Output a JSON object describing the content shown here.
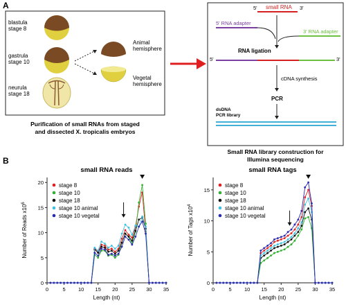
{
  "panel_a": {
    "label": "A",
    "embryos": [
      {
        "name": "blastula",
        "stage": "stage 8"
      },
      {
        "name": "gastrula",
        "stage": "stage 10"
      },
      {
        "name": "neurula",
        "stage": "stage 18"
      }
    ],
    "hemispheres": {
      "animal_1": "Animal",
      "animal_2": "hemisphere",
      "vegetal_1": "Vegetal",
      "vegetal_2": "hemisphere"
    },
    "caption_left": [
      "Purification of small RNAs from staged",
      "and dissected X. tropicalis embryos"
    ],
    "flow": {
      "small_rna": "small RNA",
      "five_prime": "5'",
      "three_prime": "3'",
      "adapter_5": "5' RNA adapter",
      "adapter_3": "3' RNA adapter",
      "ligation": "RNA ligation",
      "cdna": "cDNA synthesis",
      "pcr": "PCR",
      "dsdna": "dsDNA",
      "pcr_library": "PCR library"
    },
    "caption_right": [
      "Small RNA library construction for",
      "Illumina sequencing"
    ],
    "colors": {
      "animal": "#7a4a25",
      "vegetal": "#e0d040",
      "small_rna": "#d42020",
      "adapter_5": "#7a3fa0",
      "adapter_3": "#6cc040",
      "library": "#40b0d8",
      "red_arrow": "#e02020"
    }
  },
  "panel_b": {
    "label": "B"
  },
  "chart_data": [
    {
      "type": "line",
      "title": "small RNA reads",
      "xlabel": "Length (nt)",
      "ylabel_main": "Number of Reads x10",
      "ylabel_exp": "6",
      "xlim": [
        0,
        35
      ],
      "ylim": [
        0,
        21
      ],
      "xticks": [
        0,
        5,
        10,
        15,
        20,
        25,
        30,
        35
      ],
      "yticks": [
        0,
        5,
        10,
        15,
        20
      ],
      "x": [
        1,
        2,
        3,
        4,
        5,
        6,
        7,
        8,
        9,
        10,
        11,
        12,
        13,
        14,
        15,
        16,
        17,
        18,
        19,
        20,
        21,
        22,
        23,
        24,
        25,
        26,
        27,
        28,
        29,
        30,
        31,
        32,
        33,
        34,
        35
      ],
      "series": [
        {
          "name": "stage 8",
          "color": "#e02020",
          "values": [
            0,
            0,
            0,
            0,
            0,
            0,
            0,
            0,
            0,
            0,
            0,
            0,
            0,
            6.8,
            6.2,
            7.6,
            7.4,
            6.6,
            6.8,
            6.2,
            6.8,
            8.8,
            10.5,
            9.6,
            9.0,
            11.2,
            15.2,
            18.0,
            10.2,
            0,
            0,
            0,
            0,
            0,
            0
          ]
        },
        {
          "name": "stage 10",
          "color": "#30b030",
          "values": [
            0,
            0,
            0,
            0,
            0,
            0,
            0,
            0,
            0,
            0,
            0,
            0,
            0,
            5.6,
            5.0,
            6.4,
            6.4,
            5.4,
            5.6,
            5.0,
            5.6,
            8.0,
            9.8,
            9.2,
            7.8,
            10.2,
            16.0,
            19.5,
            11.8,
            0,
            0,
            0,
            0,
            0,
            0
          ]
        },
        {
          "name": "stage 18",
          "color": "#111111",
          "values": [
            0,
            0,
            0,
            0,
            0,
            0,
            0,
            0,
            0,
            0,
            0,
            0,
            0,
            6.6,
            6.0,
            7.2,
            7.0,
            6.2,
            6.4,
            5.8,
            6.4,
            8.0,
            9.8,
            9.2,
            8.4,
            10.4,
            12.6,
            13.0,
            10.8,
            0,
            0,
            0,
            0,
            0,
            0
          ]
        },
        {
          "name": "stage 10 animal",
          "color": "#40c0e0",
          "values": [
            0,
            0,
            0,
            0,
            0,
            0,
            0,
            0,
            0,
            0,
            0,
            0,
            0,
            7.0,
            6.4,
            8.2,
            7.8,
            7.0,
            7.4,
            6.8,
            7.4,
            9.8,
            11.6,
            11.0,
            9.6,
            11.4,
            11.2,
            13.2,
            11.2,
            0,
            0,
            0,
            0,
            0,
            0
          ]
        },
        {
          "name": "stage 10 vegetal",
          "color": "#2a2ab0",
          "values": [
            0,
            0,
            0,
            0,
            0,
            0,
            0,
            0,
            0,
            0,
            0,
            0,
            0,
            6.0,
            5.4,
            6.8,
            6.6,
            5.6,
            5.8,
            5.4,
            5.8,
            7.2,
            9.2,
            8.6,
            7.6,
            9.2,
            11.2,
            12.2,
            9.8,
            0,
            0,
            0,
            0,
            0,
            0
          ]
        }
      ],
      "annotations": {
        "arrow_down_x": 22.5,
        "arrow_down_y": 13.0,
        "triangle_x": 28
      }
    },
    {
      "type": "line",
      "title": "small RNA tags",
      "xlabel": "Length (nt)",
      "ylabel_main": "Number of Tags x10",
      "ylabel_exp": "4",
      "xlim": [
        0,
        35
      ],
      "ylim": [
        0,
        17
      ],
      "xticks": [
        0,
        5,
        10,
        15,
        20,
        25,
        30,
        35
      ],
      "yticks": [
        0,
        5,
        10,
        15
      ],
      "x": [
        1,
        2,
        3,
        4,
        5,
        6,
        7,
        8,
        9,
        10,
        11,
        12,
        13,
        14,
        15,
        16,
        17,
        18,
        19,
        20,
        21,
        22,
        23,
        24,
        25,
        26,
        27,
        28,
        29,
        30,
        31,
        32,
        33,
        34,
        35
      ],
      "series": [
        {
          "name": "stage 8",
          "color": "#e02020",
          "values": [
            0,
            0,
            0,
            0,
            0,
            0,
            0,
            0,
            0,
            0,
            0,
            0,
            0,
            4.8,
            5.2,
            5.6,
            6.0,
            6.6,
            6.8,
            7.0,
            7.2,
            7.6,
            8.0,
            8.6,
            9.4,
            10.6,
            13.8,
            15.0,
            12.4,
            0,
            0,
            0,
            0,
            0,
            0
          ]
        },
        {
          "name": "stage 10",
          "color": "#30b030",
          "values": [
            0,
            0,
            0,
            0,
            0,
            0,
            0,
            0,
            0,
            0,
            0,
            0,
            0,
            3.2,
            3.6,
            4.0,
            4.4,
            4.8,
            5.0,
            5.2,
            5.4,
            5.8,
            6.2,
            6.8,
            7.6,
            8.6,
            10.4,
            10.6,
            8.8,
            0,
            0,
            0,
            0,
            0,
            0
          ]
        },
        {
          "name": "stage 18",
          "color": "#111111",
          "values": [
            0,
            0,
            0,
            0,
            0,
            0,
            0,
            0,
            0,
            0,
            0,
            0,
            0,
            4.0,
            4.4,
            4.8,
            5.2,
            5.6,
            5.8,
            6.0,
            6.2,
            6.6,
            7.0,
            7.6,
            8.2,
            9.2,
            11.4,
            12.0,
            10.2,
            0,
            0,
            0,
            0,
            0,
            0
          ]
        },
        {
          "name": "stage 10 animal",
          "color": "#40c0e0",
          "values": [
            0,
            0,
            0,
            0,
            0,
            0,
            0,
            0,
            0,
            0,
            0,
            0,
            0,
            4.4,
            4.8,
            5.2,
            5.6,
            6.0,
            6.2,
            6.4,
            6.6,
            7.0,
            7.4,
            8.0,
            8.8,
            9.8,
            12.6,
            13.6,
            11.4,
            0,
            0,
            0,
            0,
            0,
            0
          ]
        },
        {
          "name": "stage 10 vegetal",
          "color": "#2a2ab0",
          "values": [
            0,
            0,
            0,
            0,
            0,
            0,
            0,
            0,
            0,
            0,
            0,
            0,
            0,
            5.2,
            5.6,
            6.0,
            6.4,
            7.0,
            7.2,
            7.4,
            7.6,
            8.2,
            8.6,
            9.4,
            10.2,
            11.6,
            15.4,
            16.2,
            12.8,
            0,
            0,
            0,
            0,
            0,
            0
          ]
        }
      ],
      "annotations": {
        "arrow_down_x": 22.5,
        "arrow_down_y": 9.2,
        "triangle_x": 28
      }
    }
  ]
}
